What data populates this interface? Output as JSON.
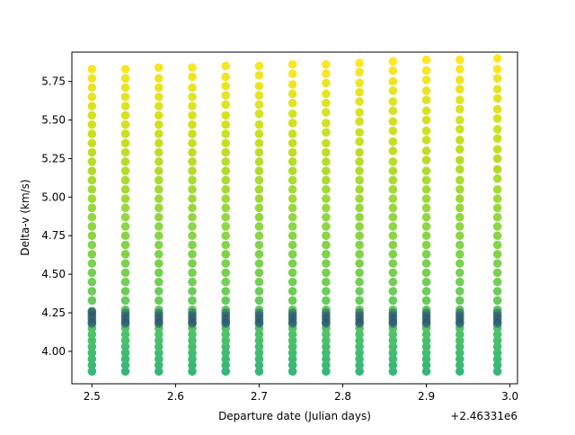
{
  "chart_data": {
    "type": "scatter",
    "title": "",
    "xlabel": "Departure date (Julian days)",
    "ylabel": "Delta-v (km/s)",
    "x_offset_label": "+2.46331e6",
    "xlim": [
      2.476,
      3.009
    ],
    "ylim": [
      3.79,
      5.94
    ],
    "xticks": [
      2.5,
      2.6,
      2.7,
      2.8,
      2.9,
      3.0
    ],
    "xtick_labels": [
      "2.5",
      "2.6",
      "2.7",
      "2.8",
      "2.9",
      "3.0"
    ],
    "yticks": [
      4.0,
      4.25,
      4.5,
      4.75,
      5.0,
      5.25,
      5.5,
      5.75
    ],
    "ytick_labels": [
      "4.00",
      "4.25",
      "4.50",
      "4.75",
      "5.00",
      "5.25",
      "5.50",
      "5.75"
    ],
    "grid": false,
    "colormap": "viridis",
    "series": [
      {
        "x": [
          2.5,
          2.5,
          2.5,
          2.5,
          2.5,
          2.5,
          2.5,
          2.5,
          2.5,
          2.5,
          2.5,
          2.5,
          2.5,
          2.5,
          2.5,
          2.5,
          2.5,
          2.5,
          2.5,
          2.5,
          2.5,
          2.5,
          2.5,
          2.5,
          2.5,
          2.5,
          2.5,
          2.5,
          2.5,
          2.5,
          2.5,
          2.5,
          2.5,
          2.5,
          2.5,
          2.5,
          2.5,
          2.5,
          2.5,
          2.5,
          2.54,
          2.54,
          2.54,
          2.54,
          2.54,
          2.54,
          2.54,
          2.54,
          2.54,
          2.54,
          2.54,
          2.54,
          2.54,
          2.54,
          2.54,
          2.54,
          2.54,
          2.54,
          2.54,
          2.54,
          2.54,
          2.54,
          2.54,
          2.54,
          2.54,
          2.54,
          2.54,
          2.54,
          2.54,
          2.54,
          2.54,
          2.54,
          2.54,
          2.54,
          2.54,
          2.54,
          2.54,
          2.54,
          2.54,
          2.54,
          2.58,
          2.58,
          2.58,
          2.58,
          2.58,
          2.58,
          2.58,
          2.58,
          2.58,
          2.58,
          2.58,
          2.58,
          2.58,
          2.58,
          2.58,
          2.58,
          2.58,
          2.58,
          2.58,
          2.58,
          2.58,
          2.58,
          2.58,
          2.58,
          2.58,
          2.58,
          2.58,
          2.58,
          2.58,
          2.58,
          2.58,
          2.58,
          2.58,
          2.58,
          2.58,
          2.58,
          2.58,
          2.58,
          2.58,
          2.58,
          2.62,
          2.62,
          2.62,
          2.62,
          2.62,
          2.62,
          2.62,
          2.62,
          2.62,
          2.62,
          2.62,
          2.62,
          2.62,
          2.62,
          2.62,
          2.62,
          2.62,
          2.62,
          2.62,
          2.62,
          2.62,
          2.62,
          2.62,
          2.62,
          2.62,
          2.62,
          2.62,
          2.62,
          2.62,
          2.62,
          2.62,
          2.62,
          2.62,
          2.62,
          2.62,
          2.62,
          2.62,
          2.62,
          2.62,
          2.62,
          2.66,
          2.66,
          2.66,
          2.66,
          2.66,
          2.66,
          2.66,
          2.66,
          2.66,
          2.66,
          2.66,
          2.66,
          2.66,
          2.66,
          2.66,
          2.66,
          2.66,
          2.66,
          2.66,
          2.66,
          2.66,
          2.66,
          2.66,
          2.66,
          2.66,
          2.66,
          2.66,
          2.66,
          2.66,
          2.66,
          2.66,
          2.66,
          2.66,
          2.66,
          2.66,
          2.66,
          2.66,
          2.66,
          2.66,
          2.66,
          2.7,
          2.7,
          2.7,
          2.7,
          2.7,
          2.7,
          2.7,
          2.7,
          2.7,
          2.7,
          2.7,
          2.7,
          2.7,
          2.7,
          2.7,
          2.7,
          2.7,
          2.7,
          2.7,
          2.7,
          2.7,
          2.7,
          2.7,
          2.7,
          2.7,
          2.7,
          2.7,
          2.7,
          2.7,
          2.7,
          2.7,
          2.7,
          2.7,
          2.7,
          2.7,
          2.7,
          2.7,
          2.7,
          2.7,
          2.7,
          2.74,
          2.74,
          2.74,
          2.74,
          2.74,
          2.74,
          2.74,
          2.74,
          2.74,
          2.74,
          2.74,
          2.74,
          2.74,
          2.74,
          2.74,
          2.74,
          2.74,
          2.74,
          2.74,
          2.74,
          2.74,
          2.74,
          2.74,
          2.74,
          2.74,
          2.74,
          2.74,
          2.74,
          2.74,
          2.74,
          2.74,
          2.74,
          2.74,
          2.74,
          2.74,
          2.74,
          2.74,
          2.74,
          2.74,
          2.74,
          2.78,
          2.78,
          2.78,
          2.78,
          2.78,
          2.78,
          2.78,
          2.78,
          2.78,
          2.78,
          2.78,
          2.78,
          2.78,
          2.78,
          2.78,
          2.78,
          2.78,
          2.78,
          2.78,
          2.78,
          2.78,
          2.78,
          2.78,
          2.78,
          2.78,
          2.78,
          2.78,
          2.78,
          2.78,
          2.78,
          2.78,
          2.78,
          2.78,
          2.78,
          2.78,
          2.78,
          2.78,
          2.78,
          2.78,
          2.78,
          2.82,
          2.82,
          2.82,
          2.82,
          2.82,
          2.82,
          2.82,
          2.82,
          2.82,
          2.82,
          2.82,
          2.82,
          2.82,
          2.82,
          2.82,
          2.82,
          2.82,
          2.82,
          2.82,
          2.82,
          2.82,
          2.82,
          2.82,
          2.82,
          2.82,
          2.82,
          2.82,
          2.82,
          2.82,
          2.82,
          2.82,
          2.82,
          2.82,
          2.82,
          2.82,
          2.82,
          2.82,
          2.82,
          2.82,
          2.82,
          2.86,
          2.86,
          2.86,
          2.86,
          2.86,
          2.86,
          2.86,
          2.86,
          2.86,
          2.86,
          2.86,
          2.86,
          2.86,
          2.86,
          2.86,
          2.86,
          2.86,
          2.86,
          2.86,
          2.86,
          2.86,
          2.86,
          2.86,
          2.86,
          2.86,
          2.86,
          2.86,
          2.86,
          2.86,
          2.86,
          2.86,
          2.86,
          2.86,
          2.86,
          2.86,
          2.86,
          2.86,
          2.86,
          2.86,
          2.86,
          2.9,
          2.9,
          2.9,
          2.9,
          2.9,
          2.9,
          2.9,
          2.9,
          2.9,
          2.9,
          2.9,
          2.9,
          2.9,
          2.9,
          2.9,
          2.9,
          2.9,
          2.9,
          2.9,
          2.9,
          2.9,
          2.9,
          2.9,
          2.9,
          2.9,
          2.9,
          2.9,
          2.9,
          2.9,
          2.9,
          2.9,
          2.9,
          2.9,
          2.9,
          2.9,
          2.9,
          2.9,
          2.9,
          2.9,
          2.9,
          2.94,
          2.94,
          2.94,
          2.94,
          2.94,
          2.94,
          2.94,
          2.94,
          2.94,
          2.94,
          2.94,
          2.94,
          2.94,
          2.94,
          2.94,
          2.94,
          2.94,
          2.94,
          2.94,
          2.94,
          2.94,
          2.94,
          2.94,
          2.94,
          2.94,
          2.94,
          2.94,
          2.94,
          2.94,
          2.94,
          2.94,
          2.94,
          2.94,
          2.94,
          2.94,
          2.94,
          2.94,
          2.94,
          2.94,
          2.94,
          2.985,
          2.985,
          2.985,
          2.985,
          2.985,
          2.985,
          2.985,
          2.985,
          2.985,
          2.985,
          2.985,
          2.985,
          2.985,
          2.985,
          2.985,
          2.985,
          2.985,
          2.985,
          2.985,
          2.985,
          2.985,
          2.985,
          2.985,
          2.985,
          2.985,
          2.985,
          2.985,
          2.985,
          2.985,
          2.985,
          2.985,
          2.985,
          2.985,
          2.985,
          2.985,
          2.985,
          2.985,
          2.985,
          2.985,
          2.985
        ],
        "y": [
          3.87,
          3.91,
          3.95,
          3.99,
          4.03,
          4.07,
          4.11,
          4.15,
          4.19,
          4.23,
          4.26,
          4.33,
          4.39,
          4.45,
          4.51,
          4.57,
          4.63,
          4.69,
          4.75,
          4.81,
          4.87,
          4.93,
          4.99,
          5.05,
          5.11,
          5.17,
          5.23,
          5.29,
          5.35,
          5.41,
          5.47,
          5.53,
          5.59,
          5.65,
          5.71,
          5.77,
          5.83,
          4.25,
          4.21,
          4.18,
          3.87,
          3.91,
          3.95,
          3.99,
          4.03,
          4.07,
          4.11,
          4.15,
          4.19,
          4.23,
          4.27,
          4.33,
          4.39,
          4.45,
          4.51,
          4.57,
          4.63,
          4.69,
          4.75,
          4.81,
          4.87,
          4.93,
          4.99,
          5.05,
          5.11,
          5.17,
          5.23,
          5.29,
          5.35,
          5.41,
          5.47,
          5.53,
          5.59,
          5.65,
          5.71,
          5.77,
          5.83,
          4.25,
          4.21,
          4.18,
          3.87,
          3.91,
          3.95,
          3.99,
          4.03,
          4.07,
          4.11,
          4.15,
          4.19,
          4.23,
          4.27,
          4.33,
          4.39,
          4.45,
          4.51,
          4.57,
          4.63,
          4.69,
          4.75,
          4.81,
          4.87,
          4.93,
          4.99,
          5.05,
          5.11,
          5.17,
          5.23,
          5.29,
          5.35,
          5.41,
          5.47,
          5.53,
          5.59,
          5.65,
          5.71,
          5.77,
          5.84,
          4.25,
          4.21,
          4.18,
          3.87,
          3.91,
          3.95,
          3.99,
          4.03,
          4.07,
          4.11,
          4.15,
          4.19,
          4.23,
          4.27,
          4.33,
          4.39,
          4.45,
          4.51,
          4.57,
          4.63,
          4.69,
          4.75,
          4.81,
          4.87,
          4.93,
          4.99,
          5.05,
          5.11,
          5.17,
          5.23,
          5.29,
          5.35,
          5.41,
          5.47,
          5.53,
          5.59,
          5.65,
          5.71,
          5.78,
          5.84,
          4.25,
          4.21,
          4.18,
          3.87,
          3.91,
          3.95,
          3.99,
          4.03,
          4.07,
          4.11,
          4.15,
          4.19,
          4.23,
          4.27,
          4.33,
          4.39,
          4.45,
          4.51,
          4.57,
          4.63,
          4.69,
          4.75,
          4.81,
          4.87,
          4.93,
          4.99,
          5.05,
          5.11,
          5.17,
          5.23,
          5.29,
          5.35,
          5.41,
          5.47,
          5.53,
          5.6,
          5.66,
          5.72,
          5.78,
          5.85,
          4.25,
          4.21,
          4.18,
          3.87,
          3.91,
          3.95,
          3.99,
          4.03,
          4.07,
          4.11,
          4.15,
          4.19,
          4.23,
          4.27,
          4.33,
          4.39,
          4.45,
          4.51,
          4.57,
          4.63,
          4.69,
          4.75,
          4.81,
          4.87,
          4.93,
          4.99,
          5.05,
          5.11,
          5.17,
          5.23,
          5.29,
          5.35,
          5.41,
          5.47,
          5.54,
          5.6,
          5.66,
          5.72,
          5.79,
          5.85,
          4.25,
          4.21,
          4.18,
          3.87,
          3.91,
          3.95,
          3.99,
          4.03,
          4.07,
          4.11,
          4.15,
          4.19,
          4.23,
          4.27,
          4.33,
          4.39,
          4.45,
          4.51,
          4.57,
          4.63,
          4.69,
          4.75,
          4.81,
          4.87,
          4.93,
          4.99,
          5.05,
          5.11,
          5.17,
          5.23,
          5.29,
          5.35,
          5.41,
          5.48,
          5.54,
          5.61,
          5.67,
          5.73,
          5.8,
          5.86,
          4.25,
          4.21,
          4.18,
          3.87,
          3.91,
          3.95,
          3.99,
          4.03,
          4.07,
          4.11,
          4.15,
          4.19,
          4.23,
          4.27,
          4.33,
          4.39,
          4.45,
          4.51,
          4.57,
          4.63,
          4.69,
          4.75,
          4.81,
          4.87,
          4.93,
          4.99,
          5.05,
          5.11,
          5.17,
          5.23,
          5.29,
          5.35,
          5.42,
          5.48,
          5.55,
          5.61,
          5.67,
          5.74,
          5.8,
          5.86,
          4.25,
          4.21,
          4.18,
          3.87,
          3.91,
          3.95,
          3.99,
          4.03,
          4.07,
          4.11,
          4.15,
          4.19,
          4.23,
          4.27,
          4.33,
          4.39,
          4.45,
          4.51,
          4.57,
          4.63,
          4.69,
          4.75,
          4.81,
          4.87,
          4.93,
          4.99,
          5.05,
          5.11,
          5.17,
          5.23,
          5.29,
          5.36,
          5.42,
          5.49,
          5.55,
          5.62,
          5.68,
          5.74,
          5.81,
          5.87,
          4.25,
          4.21,
          4.18,
          3.87,
          3.91,
          3.95,
          3.99,
          4.03,
          4.07,
          4.11,
          4.15,
          4.19,
          4.23,
          4.27,
          4.33,
          4.39,
          4.45,
          4.51,
          4.57,
          4.63,
          4.69,
          4.75,
          4.81,
          4.87,
          4.93,
          4.99,
          5.05,
          5.11,
          5.17,
          5.23,
          5.3,
          5.36,
          5.43,
          5.49,
          5.56,
          5.62,
          5.69,
          5.75,
          5.82,
          5.88,
          4.25,
          4.21,
          4.18,
          3.87,
          3.91,
          3.95,
          3.99,
          4.03,
          4.07,
          4.11,
          4.15,
          4.19,
          4.23,
          4.27,
          4.33,
          4.39,
          4.45,
          4.51,
          4.57,
          4.63,
          4.69,
          4.75,
          4.81,
          4.87,
          4.93,
          4.99,
          5.05,
          5.11,
          5.17,
          5.24,
          5.3,
          5.37,
          5.43,
          5.5,
          5.56,
          5.63,
          5.69,
          5.76,
          5.82,
          5.89,
          4.25,
          4.21,
          4.18,
          3.87,
          3.91,
          3.95,
          3.99,
          4.03,
          4.07,
          4.11,
          4.15,
          4.19,
          4.23,
          4.27,
          4.33,
          4.39,
          4.45,
          4.51,
          4.57,
          4.63,
          4.69,
          4.75,
          4.81,
          4.87,
          4.93,
          4.99,
          5.05,
          5.11,
          5.18,
          5.24,
          5.31,
          5.37,
          5.44,
          5.5,
          5.57,
          5.63,
          5.7,
          5.76,
          5.83,
          5.89,
          4.25,
          4.21,
          4.18,
          3.87,
          3.91,
          3.95,
          3.99,
          4.03,
          4.07,
          4.11,
          4.15,
          4.19,
          4.23,
          4.27,
          4.33,
          4.39,
          4.45,
          4.51,
          4.57,
          4.63,
          4.69,
          4.75,
          4.81,
          4.87,
          4.93,
          4.99,
          5.05,
          5.12,
          5.18,
          5.25,
          5.31,
          5.38,
          5.44,
          5.51,
          5.57,
          5.64,
          5.7,
          5.77,
          5.83,
          5.9,
          4.25,
          4.21,
          4.18
        ]
      }
    ]
  }
}
